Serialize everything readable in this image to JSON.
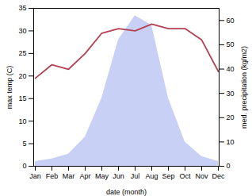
{
  "chart_data": {
    "type": "line",
    "categories": [
      "Jan",
      "Feb",
      "Mar",
      "Apr",
      "May",
      "Jun",
      "Jul",
      "Aug",
      "Sep",
      "Oct",
      "Nov",
      "Dec"
    ],
    "xlabel": "date (month)",
    "ylabel": "max temp (C)",
    "y2label": "med. precipitation (kg/m2)",
    "ylim": [
      0,
      35
    ],
    "yticks": [
      0,
      5,
      10,
      15,
      20,
      25,
      30,
      35
    ],
    "y2lim": [
      0,
      65
    ],
    "y2ticks": [
      0,
      10,
      20,
      30,
      40,
      50,
      60
    ],
    "grid": false,
    "series": [
      {
        "type": "area",
        "axis": "y2",
        "color": "#c8d0f5",
        "values": [
          2.0,
          3.0,
          5.0,
          12.0,
          28.0,
          52.0,
          62.0,
          58.0,
          28.0,
          10.0,
          4.0,
          2.0
        ]
      },
      {
        "type": "line",
        "color": "#b44050",
        "values": [
          19.5,
          22.5,
          21.5,
          25.0,
          29.5,
          30.5,
          30.0,
          31.5,
          30.5,
          30.5,
          28.0,
          21.0
        ]
      }
    ]
  }
}
